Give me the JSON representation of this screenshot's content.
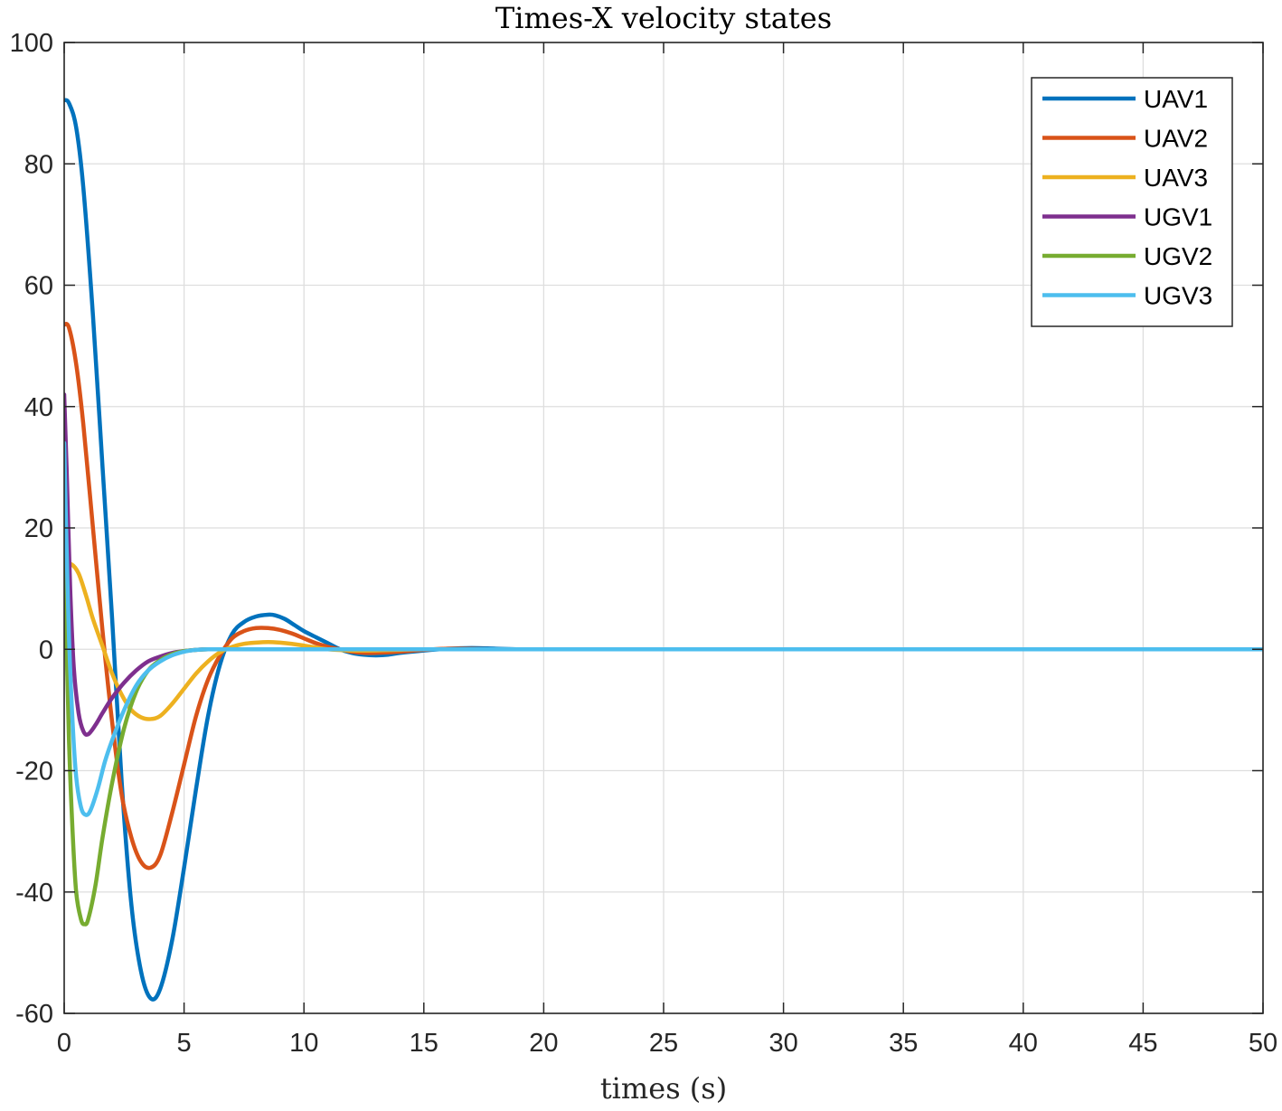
{
  "chart_data": {
    "type": "line",
    "title": "Times-X velocity states",
    "xlabel": "times (s)",
    "ylabel": "",
    "xlim": [
      0,
      50
    ],
    "ylim": [
      -60,
      100
    ],
    "xticks": [
      "0",
      "5",
      "10",
      "15",
      "20",
      "25",
      "30",
      "35",
      "40",
      "45",
      "50"
    ],
    "yticks": [
      "-60",
      "-40",
      "-20",
      "0",
      "20",
      "40",
      "60",
      "80",
      "100"
    ],
    "grid": true,
    "legend_position": "top-right",
    "series": [
      {
        "name": "UAV1",
        "color": "#0072BD",
        "x": [
          0,
          0.2,
          0.5,
          0.8,
          1.2,
          1.6,
          2.0,
          2.4,
          2.8,
          3.2,
          3.6,
          4.0,
          4.5,
          5.0,
          5.5,
          6.0,
          6.5,
          7.0,
          7.5,
          8.0,
          8.5,
          8.8,
          9.2,
          9.6,
          10.0,
          10.5,
          11.0,
          11.5,
          12.0,
          12.5,
          13.0,
          13.5,
          14.0,
          15.0,
          16.0,
          17.0,
          18.0,
          19.0,
          20.0,
          25.0,
          30.0,
          35.0,
          40.0,
          45.0,
          50.0
        ],
        "y": [
          90.5,
          90,
          86,
          76,
          55,
          30,
          5,
          -22,
          -42,
          -53,
          -57.5,
          -56,
          -48,
          -36,
          -23,
          -11,
          -2.5,
          2.5,
          4.5,
          5.4,
          5.7,
          5.6,
          5,
          4,
          3,
          2,
          1,
          0,
          -0.6,
          -0.9,
          -1,
          -0.9,
          -0.6,
          -0.2,
          0.1,
          0.2,
          0.1,
          0,
          0,
          0,
          0,
          0,
          0,
          0,
          0
        ]
      },
      {
        "name": "UAV2",
        "color": "#D95319",
        "x": [
          0,
          0.2,
          0.5,
          0.8,
          1.2,
          1.6,
          2.0,
          2.4,
          2.8,
          3.2,
          3.6,
          4.0,
          4.5,
          5.0,
          5.5,
          6.0,
          6.5,
          7.0,
          7.5,
          8.0,
          8.5,
          9.0,
          9.5,
          10.0,
          10.5,
          11.0,
          11.5,
          12.0,
          12.5,
          13.0,
          14.0,
          15.0,
          16.0,
          18.0,
          20.0,
          25.0,
          30.0,
          35.0,
          40.0,
          45.0,
          50.0
        ],
        "y": [
          53.5,
          53,
          47,
          37,
          20,
          3,
          -12,
          -24,
          -31,
          -35,
          -36,
          -34,
          -27,
          -19,
          -11,
          -5,
          -1,
          1.8,
          3,
          3.5,
          3.5,
          3.2,
          2.6,
          1.8,
          1,
          0.4,
          0,
          -0.4,
          -0.6,
          -0.6,
          -0.4,
          -0.1,
          0.1,
          0,
          0,
          0,
          0,
          0,
          0,
          0,
          0
        ]
      },
      {
        "name": "UAV3",
        "color": "#EDB120",
        "x": [
          0,
          0.15,
          0.3,
          0.6,
          0.9,
          1.2,
          1.6,
          2.0,
          2.4,
          2.8,
          3.2,
          3.6,
          4.0,
          4.5,
          5.0,
          5.5,
          6.0,
          6.5,
          7.0,
          7.5,
          8.0,
          8.5,
          9.0,
          9.5,
          10.0,
          10.5,
          11.0,
          12.0,
          13.0,
          14.0,
          15.0,
          20.0,
          25.0,
          30.0,
          35.0,
          40.0,
          45.0,
          50.0
        ],
        "y": [
          12,
          13.5,
          14,
          12.5,
          9,
          5,
          0.5,
          -4,
          -7.5,
          -10,
          -11.2,
          -11.5,
          -11,
          -9,
          -6.5,
          -4,
          -2,
          -0.5,
          0.4,
          0.9,
          1.1,
          1.2,
          1.1,
          0.9,
          0.6,
          0.3,
          0,
          -0.2,
          -0.2,
          -0.1,
          0,
          0,
          0,
          0,
          0,
          0,
          0,
          0
        ]
      },
      {
        "name": "UGV1",
        "color": "#7E2F8E",
        "x": [
          0,
          0.1,
          0.25,
          0.4,
          0.6,
          0.8,
          1.0,
          1.3,
          1.6,
          2.0,
          2.5,
          3.0,
          3.5,
          4.0,
          4.5,
          5.0,
          5.5,
          6.0,
          7.0,
          8.0,
          9.0,
          10.0,
          15.0,
          20.0,
          25.0,
          30.0,
          35.0,
          40.0,
          45.0,
          50.0
        ],
        "y": [
          42,
          30,
          10,
          -3,
          -10.5,
          -13.5,
          -14,
          -12.5,
          -10.5,
          -8,
          -5.5,
          -3.5,
          -2,
          -1.2,
          -0.6,
          -0.3,
          -0.1,
          0,
          0,
          0,
          0,
          0,
          0,
          0,
          0,
          0,
          0,
          0,
          0,
          0
        ]
      },
      {
        "name": "UGV2",
        "color": "#77AC30",
        "x": [
          0,
          0.08,
          0.2,
          0.35,
          0.5,
          0.7,
          0.85,
          1.0,
          1.3,
          1.6,
          2.0,
          2.5,
          3.0,
          3.5,
          4.0,
          4.5,
          5.0,
          5.5,
          6.0,
          6.5,
          7.0,
          8.0,
          9.0,
          10.0,
          15.0,
          20.0,
          25.0,
          30.0,
          35.0,
          40.0,
          45.0,
          50.0
        ],
        "y": [
          22.5,
          5,
          -15,
          -30,
          -40,
          -44.5,
          -45.3,
          -44.5,
          -39,
          -31,
          -22,
          -13,
          -7,
          -3.5,
          -1.8,
          -0.8,
          -0.3,
          -0.1,
          0,
          0,
          0,
          0,
          0,
          0,
          0,
          0,
          0,
          0,
          0,
          0,
          0,
          0
        ]
      },
      {
        "name": "UGV3",
        "color": "#4DBEEE",
        "x": [
          0,
          0.08,
          0.2,
          0.35,
          0.5,
          0.7,
          0.9,
          1.1,
          1.4,
          1.7,
          2.0,
          2.5,
          3.0,
          3.5,
          4.0,
          4.5,
          5.0,
          5.5,
          6.0,
          6.5,
          7.0,
          8.0,
          9.0,
          10.0,
          15.0,
          20.0,
          25.0,
          30.0,
          35.0,
          40.0,
          45.0,
          50.0
        ],
        "y": [
          34,
          20,
          2,
          -12,
          -21,
          -26,
          -27.3,
          -26.5,
          -23,
          -18.5,
          -15,
          -10,
          -6,
          -3.5,
          -2,
          -1,
          -0.4,
          -0.1,
          0,
          0,
          0,
          0,
          0,
          0,
          0,
          0,
          0,
          0,
          0,
          0,
          0,
          0
        ]
      }
    ]
  }
}
